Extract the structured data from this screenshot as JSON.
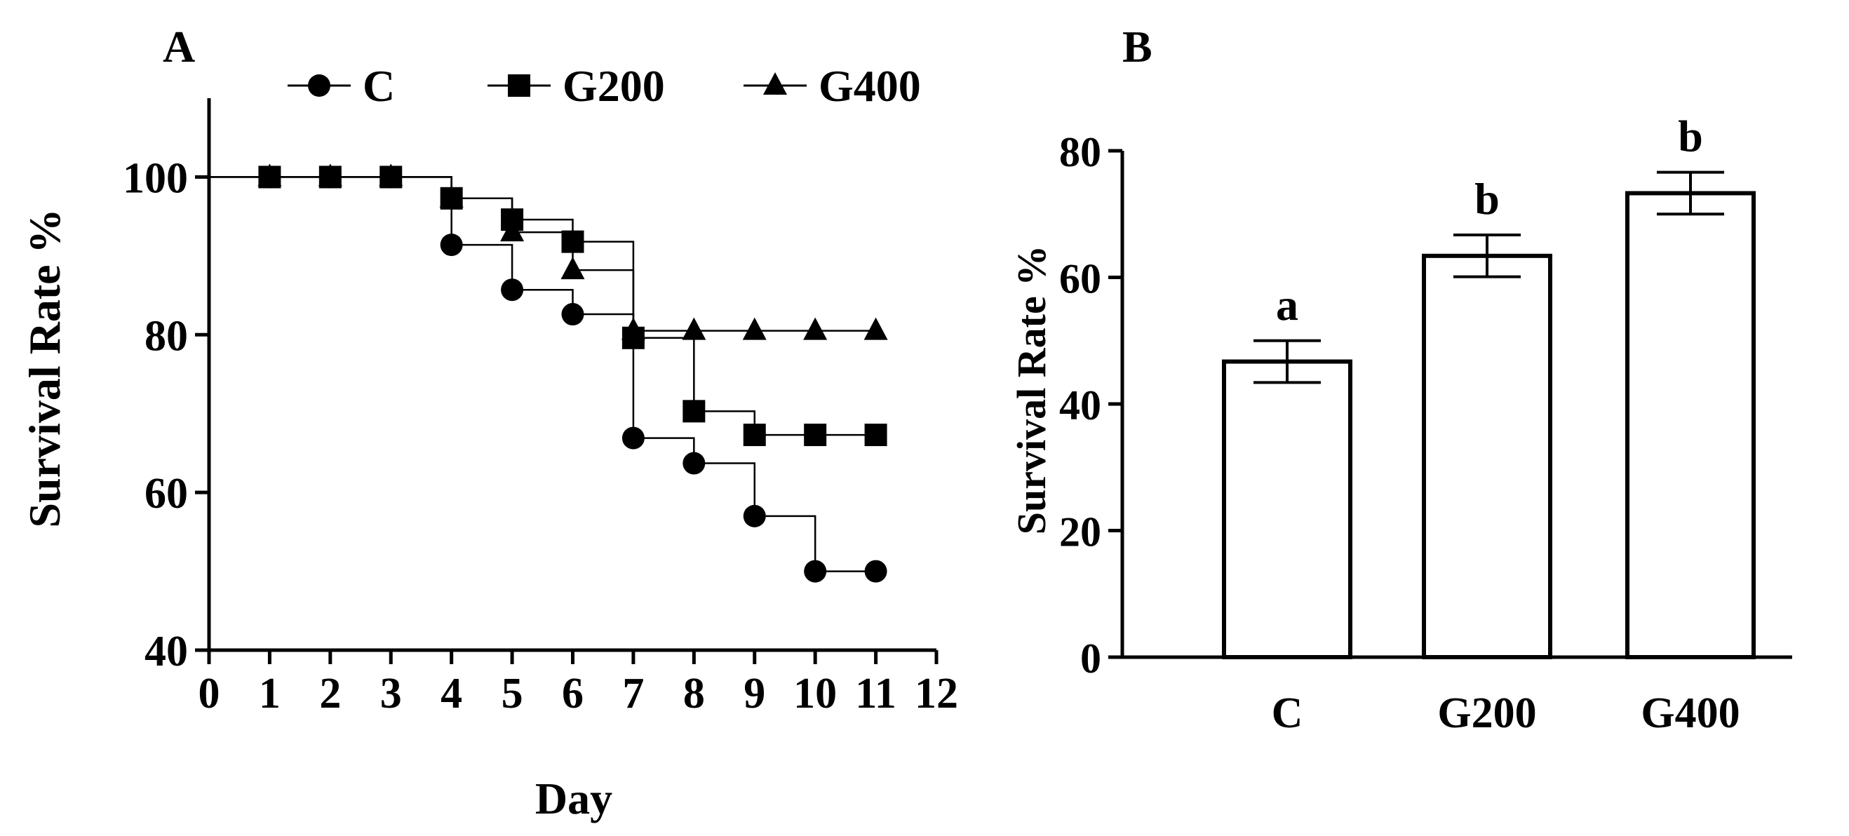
{
  "chart_data": [
    {
      "panel_label": "A",
      "type": "line",
      "title": "",
      "xlabel": "Day",
      "ylabel": "Survival Rate %",
      "xlim": [
        0,
        12
      ],
      "ylim": [
        40,
        110
      ],
      "xticks": [
        0,
        1,
        2,
        3,
        4,
        5,
        6,
        7,
        8,
        9,
        10,
        11,
        12
      ],
      "yticks": [
        40,
        60,
        80,
        100
      ],
      "step": true,
      "legend_position": "top",
      "series": [
        {
          "name": "C",
          "marker": "circle",
          "x": [
            1,
            2,
            3,
            4,
            5,
            6,
            7,
            8,
            9,
            10,
            11
          ],
          "y": [
            100,
            100,
            100,
            91.4,
            85.7,
            82.6,
            66.9,
            63.7,
            57.0,
            50.0,
            50.0
          ]
        },
        {
          "name": "G200",
          "marker": "square",
          "x": [
            1,
            2,
            3,
            4,
            5,
            6,
            7,
            8,
            9,
            10,
            11
          ],
          "y": [
            100,
            100,
            100,
            97.3,
            94.6,
            91.8,
            79.6,
            70.3,
            67.3,
            67.3,
            67.3
          ]
        },
        {
          "name": "G400",
          "marker": "triangle",
          "x": [
            1,
            2,
            3,
            4,
            5,
            6,
            7,
            8,
            9,
            10,
            11
          ],
          "y": [
            100,
            100,
            100,
            97.3,
            93.0,
            88.2,
            80.5,
            80.5,
            80.5,
            80.5,
            80.5
          ]
        }
      ]
    },
    {
      "panel_label": "B",
      "type": "bar",
      "title": "",
      "xlabel": "",
      "ylabel": "Survival Rate %",
      "ylim": [
        0,
        80
      ],
      "yticks": [
        0,
        20,
        40,
        60,
        80
      ],
      "categories": [
        "C",
        "G200",
        "G400"
      ],
      "values": [
        46.7,
        63.4,
        73.3
      ],
      "errors": [
        3.3,
        3.3,
        3.3
      ],
      "significance": [
        "a",
        "b",
        "b"
      ]
    }
  ]
}
